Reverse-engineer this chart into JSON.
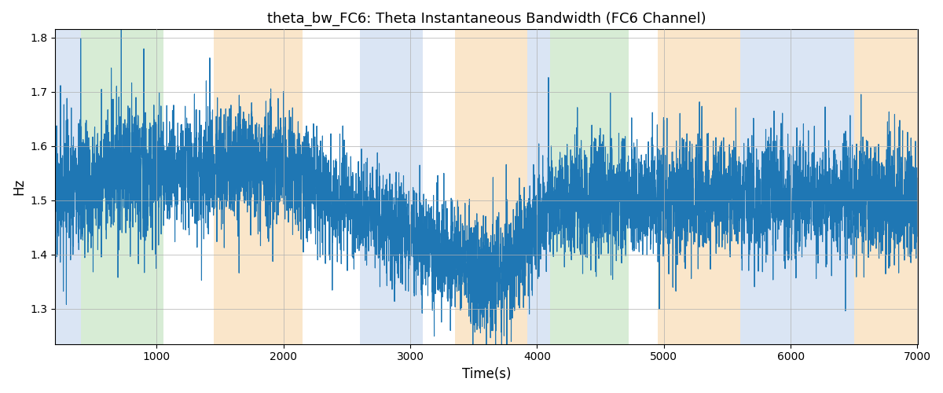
{
  "title": "theta_bw_FC6: Theta Instantaneous Bandwidth (FC6 Channel)",
  "xlabel": "Time(s)",
  "ylabel": "Hz",
  "xlim": [
    200,
    7000
  ],
  "ylim": [
    1.235,
    1.815
  ],
  "yticks": [
    1.3,
    1.4,
    1.5,
    1.6,
    1.7,
    1.8
  ],
  "xticks": [
    1000,
    2000,
    3000,
    4000,
    5000,
    6000,
    7000
  ],
  "line_color": "#1f77b4",
  "line_width": 0.8,
  "background_color": "#ffffff",
  "grid_color": "#b0b0b0",
  "bg_bands": [
    {
      "xmin": 200,
      "xmax": 400,
      "color": "#aec6e8",
      "alpha": 0.45
    },
    {
      "xmin": 400,
      "xmax": 1050,
      "color": "#a8d5a2",
      "alpha": 0.45
    },
    {
      "xmin": 1450,
      "xmax": 2150,
      "color": "#f5c98a",
      "alpha": 0.45
    },
    {
      "xmin": 2600,
      "xmax": 3100,
      "color": "#aec6e8",
      "alpha": 0.45
    },
    {
      "xmin": 3350,
      "xmax": 3920,
      "color": "#f5c98a",
      "alpha": 0.45
    },
    {
      "xmin": 3920,
      "xmax": 4100,
      "color": "#aec6e8",
      "alpha": 0.45
    },
    {
      "xmin": 4100,
      "xmax": 4720,
      "color": "#a8d5a2",
      "alpha": 0.45
    },
    {
      "xmin": 4950,
      "xmax": 5600,
      "color": "#f5c98a",
      "alpha": 0.45
    },
    {
      "xmin": 5600,
      "xmax": 6500,
      "color": "#aec6e8",
      "alpha": 0.45
    },
    {
      "xmin": 6500,
      "xmax": 7000,
      "color": "#f5c98a",
      "alpha": 0.45
    }
  ],
  "seed": 17,
  "t_start": 200,
  "t_end": 7000,
  "n_points": 6800,
  "base_value": 1.505,
  "noise_std": 0.055,
  "figsize": [
    12.0,
    5.0
  ],
  "dpi": 100
}
